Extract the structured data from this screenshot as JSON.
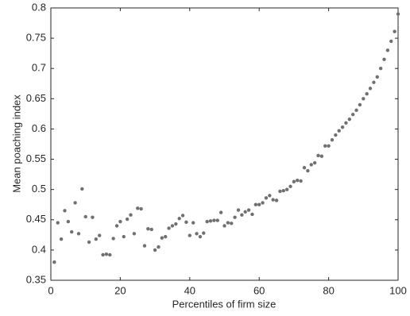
{
  "chart_data": {
    "type": "scatter",
    "x_label": "Percentiles of firm size",
    "y_label": "Mean poaching index",
    "color": "#707070",
    "x": [
      1,
      2,
      3,
      4,
      5,
      6,
      7,
      8,
      9,
      10,
      11,
      12,
      13,
      14,
      15,
      16,
      17,
      18,
      19,
      20,
      21,
      22,
      23,
      24,
      25,
      26,
      27,
      28,
      29,
      30,
      31,
      32,
      33,
      34,
      35,
      36,
      37,
      38,
      39,
      40,
      41,
      42,
      43,
      44,
      45,
      46,
      47,
      48,
      49,
      50,
      51,
      52,
      53,
      54,
      55,
      56,
      57,
      58,
      59,
      60,
      61,
      62,
      63,
      64,
      65,
      66,
      67,
      68,
      69,
      70,
      71,
      72,
      73,
      74,
      75,
      76,
      77,
      78,
      79,
      80,
      81,
      82,
      83,
      84,
      85,
      86,
      87,
      88,
      89,
      90,
      91,
      92,
      93,
      94,
      95,
      96,
      97,
      98,
      99,
      100
    ],
    "values": [
      0.38,
      0.445,
      0.418,
      0.465,
      0.447,
      0.43,
      0.478,
      0.427,
      0.501,
      0.455,
      0.413,
      0.454,
      0.418,
      0.424,
      0.392,
      0.393,
      0.392,
      0.419,
      0.44,
      0.447,
      0.422,
      0.451,
      0.458,
      0.427,
      0.469,
      0.468,
      0.407,
      0.435,
      0.434,
      0.4,
      0.405,
      0.42,
      0.422,
      0.436,
      0.44,
      0.443,
      0.452,
      0.457,
      0.446,
      0.424,
      0.445,
      0.427,
      0.422,
      0.428,
      0.447,
      0.448,
      0.449,
      0.449,
      0.462,
      0.44,
      0.445,
      0.444,
      0.454,
      0.466,
      0.458,
      0.463,
      0.466,
      0.459,
      0.475,
      0.475,
      0.478,
      0.486,
      0.49,
      0.483,
      0.482,
      0.497,
      0.498,
      0.5,
      0.505,
      0.513,
      0.515,
      0.514,
      0.536,
      0.531,
      0.541,
      0.544,
      0.556,
      0.555,
      0.572,
      0.572,
      0.582,
      0.59,
      0.597,
      0.603,
      0.61,
      0.616,
      0.624,
      0.631,
      0.64,
      0.65,
      0.658,
      0.667,
      0.677,
      0.686,
      0.7,
      0.715,
      0.73,
      0.745,
      0.761,
      0.79
    ],
    "xlim": [
      0,
      100
    ],
    "xticks": [
      0,
      20,
      40,
      60,
      80,
      100
    ],
    "ylim": [
      0.35,
      0.8
    ],
    "yticks": [
      0.35,
      0.4,
      0.45,
      0.5,
      0.55,
      0.6,
      0.65,
      0.7,
      0.75,
      0.8
    ]
  }
}
